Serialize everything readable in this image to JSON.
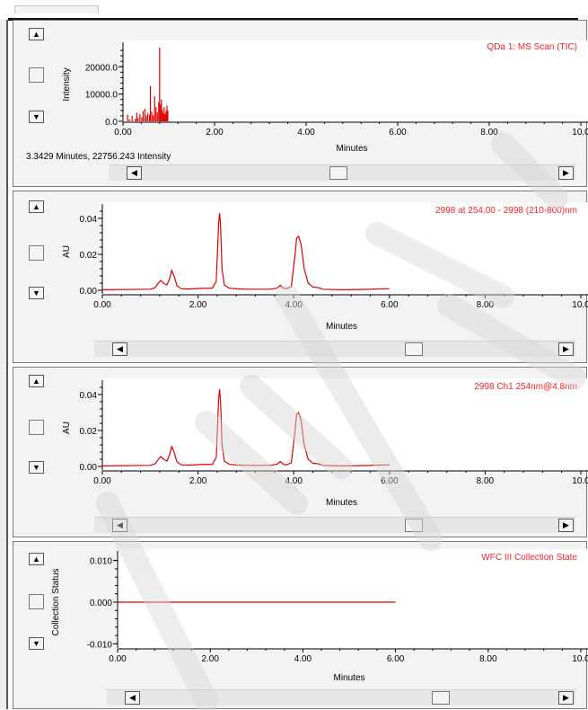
{
  "chart_data": [
    {
      "type": "line",
      "title": "QDa 1: MS Scan (TIC)",
      "xlabel": "Minutes",
      "ylabel": "Intensity",
      "xlim": [
        0,
        10
      ],
      "ylim": [
        0,
        27000
      ],
      "xticks": [
        "0.00",
        "2.00",
        "4.00",
        "6.00",
        "8.00",
        "10.0"
      ],
      "yticks": [
        "0.0",
        "10000.0",
        "20000.0"
      ],
      "ytick_values": [
        0,
        10000,
        20000
      ],
      "render": "sticks",
      "series": [
        {
          "x": [
            0.1,
            0.14,
            0.2,
            0.27,
            0.3,
            0.33,
            0.37,
            0.41,
            0.44,
            0.48,
            0.51,
            0.54,
            0.58,
            0.6,
            0.63,
            0.66,
            0.69,
            0.72,
            0.75,
            0.78,
            0.8,
            0.82,
            0.84,
            0.86,
            0.88,
            0.9,
            0.92,
            0.94,
            0.96,
            0.98
          ],
          "y": [
            2500,
            800,
            2000,
            900,
            3200,
            1200,
            2600,
            1500,
            3800,
            4600,
            2000,
            3000,
            2500,
            13000,
            3500,
            2200,
            9200,
            5200,
            3300,
            7000,
            27000,
            6200,
            8000,
            4200,
            3000,
            5200,
            2500,
            3600,
            5800,
            4000
          ]
        }
      ]
    },
    {
      "type": "line",
      "title": "2998 at 254.00 - 2998 (210-800)nm",
      "xlabel": "Minutes",
      "ylabel": "AU",
      "xlim": [
        0,
        10
      ],
      "ylim": [
        -0.002,
        0.045
      ],
      "xticks": [
        "0.00",
        "2.00",
        "4.00",
        "6.00",
        "8.00",
        "10.0"
      ],
      "yticks": [
        "0.00",
        "0.02",
        "0.04"
      ],
      "ytick_values": [
        0,
        0.02,
        0.04
      ],
      "render": "line",
      "series": [
        {
          "x": [
            0,
            1,
            1.1,
            1.17,
            1.22,
            1.28,
            1.35,
            1.4,
            1.45,
            1.5,
            1.56,
            1.65,
            1.8,
            2.0,
            2.3,
            2.38,
            2.43,
            2.45,
            2.47,
            2.5,
            2.55,
            2.65,
            2.8,
            3.0,
            3.5,
            3.65,
            3.72,
            3.78,
            3.85,
            3.95,
            4.02,
            4.06,
            4.1,
            4.15,
            4.22,
            4.3,
            4.4,
            4.5,
            4.55,
            4.6,
            5.0,
            5.5,
            6.0
          ],
          "y": [
            0.0003,
            0.0006,
            0.0014,
            0.004,
            0.0055,
            0.004,
            0.003,
            0.006,
            0.011,
            0.008,
            0.0025,
            0.0009,
            0.0007,
            0.001,
            0.0012,
            0.005,
            0.037,
            0.043,
            0.036,
            0.012,
            0.003,
            0.0012,
            0.0008,
            0.0006,
            0.0006,
            0.0012,
            0.0028,
            0.0012,
            0.0009,
            0.002,
            0.018,
            0.029,
            0.03,
            0.026,
            0.012,
            0.004,
            0.0018,
            0.0015,
            0.0012,
            0.0006,
            0.0003,
            0.0005,
            0.0009
          ]
        }
      ]
    },
    {
      "type": "line",
      "title": "2998 Ch1 254nm@4.8nm",
      "xlabel": "Minutes",
      "ylabel": "AU",
      "xlim": [
        0,
        10
      ],
      "ylim": [
        -0.002,
        0.045
      ],
      "xticks": [
        "0.00",
        "2.00",
        "4.00",
        "6.00",
        "8.00",
        "10.0"
      ],
      "yticks": [
        "0.00",
        "0.02",
        "0.04"
      ],
      "ytick_values": [
        0,
        0.02,
        0.04
      ],
      "render": "line",
      "series": [
        {
          "x": [
            0,
            1,
            1.1,
            1.17,
            1.22,
            1.28,
            1.35,
            1.4,
            1.45,
            1.5,
            1.56,
            1.65,
            1.8,
            2.0,
            2.3,
            2.38,
            2.43,
            2.45,
            2.47,
            2.5,
            2.55,
            2.65,
            2.8,
            3.0,
            3.5,
            3.65,
            3.72,
            3.78,
            3.85,
            3.95,
            4.02,
            4.06,
            4.1,
            4.15,
            4.22,
            4.3,
            4.4,
            4.5,
            4.55,
            4.6,
            5.0,
            5.5,
            6.0
          ],
          "y": [
            0.0003,
            0.0006,
            0.0014,
            0.004,
            0.0055,
            0.004,
            0.003,
            0.006,
            0.011,
            0.008,
            0.0025,
            0.0009,
            0.0007,
            0.001,
            0.0012,
            0.005,
            0.037,
            0.043,
            0.036,
            0.012,
            0.003,
            0.0012,
            0.0008,
            0.0006,
            0.0006,
            0.0012,
            0.0028,
            0.0012,
            0.0009,
            0.002,
            0.018,
            0.029,
            0.03,
            0.026,
            0.012,
            0.004,
            0.0018,
            0.0015,
            0.0012,
            0.0006,
            0.0003,
            0.0005,
            0.0009
          ]
        }
      ]
    },
    {
      "type": "line",
      "title": "WFC III Collection State",
      "xlabel": "Minutes",
      "ylabel": "Collection Status",
      "xlim": [
        0,
        10
      ],
      "ylim": [
        -0.011,
        0.011
      ],
      "xticks": [
        "0.00",
        "2.00",
        "4.00",
        "6.00",
        "8.00",
        "10.0"
      ],
      "yticks": [
        "-0.010",
        "0.000",
        "0.010"
      ],
      "ytick_values": [
        -0.01,
        0,
        0.01
      ],
      "render": "line",
      "series": [
        {
          "x": [
            0,
            6.0
          ],
          "y": [
            0,
            0
          ]
        }
      ]
    }
  ],
  "readout": "3.3429 Minutes, 22756.243 Intensity",
  "colors": {
    "trace": "#e00000",
    "title": "#ff2020",
    "background": "#ffffff",
    "panel": "#f3f3f3"
  },
  "controls": {
    "up_arrow": "▲",
    "down_arrow": "▼",
    "left_arrow": "◀",
    "right_arrow": "▶"
  },
  "icons": [
    "scroll-up-icon",
    "scroll-down-icon",
    "scroll-left-icon",
    "scroll-right-icon"
  ]
}
